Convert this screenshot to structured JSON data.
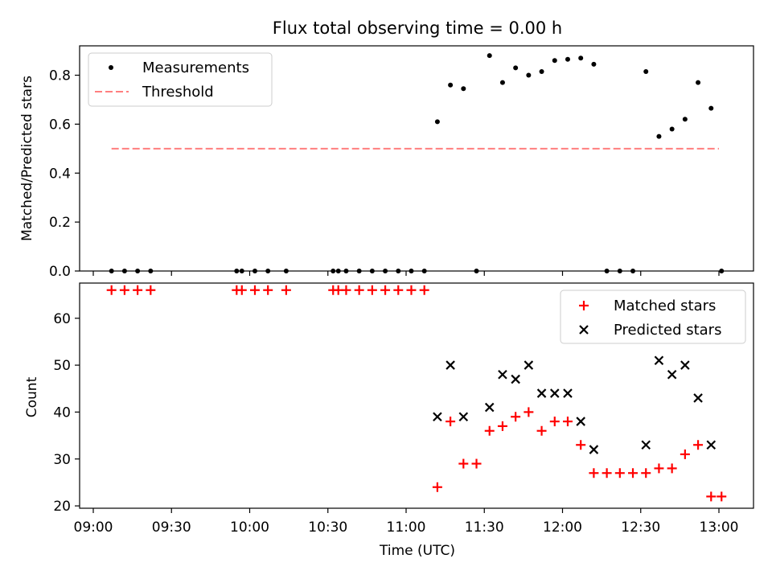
{
  "chart_data": [
    {
      "type": "scatter",
      "title": "Flux total observing time = 0.00 h",
      "xlabel": "",
      "ylabel": "Matched/Predicted stars",
      "ylim": [
        0,
        0.92
      ],
      "yticks": [
        "0.0",
        "0.2",
        "0.4",
        "0.6",
        "0.8"
      ],
      "grid": false,
      "legend_position": "top-left",
      "legend": [
        "Measurements",
        "Threshold"
      ],
      "threshold": {
        "name": "Threshold",
        "value": 0.5,
        "x_start": "09:07",
        "x_end": "13:00",
        "color": "#ff7f7f"
      },
      "series": [
        {
          "name": "Measurements",
          "color": "#000000",
          "x": [
            "09:07",
            "09:12",
            "09:17",
            "09:22",
            "09:55",
            "09:57",
            "10:02",
            "10:07",
            "10:14",
            "10:32",
            "10:34",
            "10:37",
            "10:42",
            "10:47",
            "10:52",
            "10:57",
            "11:02",
            "11:07",
            "11:12",
            "11:17",
            "11:22",
            "11:27",
            "11:32",
            "11:37",
            "11:42",
            "11:47",
            "11:52",
            "11:57",
            "12:02",
            "12:07",
            "12:12",
            "12:17",
            "12:22",
            "12:27",
            "12:32",
            "12:37",
            "12:42",
            "12:47",
            "12:52",
            "12:57",
            "13:01"
          ],
          "y": [
            0,
            0,
            0,
            0,
            0,
            0,
            0,
            0,
            0,
            0,
            0,
            0,
            0,
            0,
            0,
            0,
            0,
            0,
            0.61,
            0.76,
            0.745,
            0,
            0.88,
            0.77,
            0.83,
            0.8,
            0.815,
            0.86,
            0.865,
            0.87,
            0.845,
            0,
            0,
            0,
            0.815,
            0.55,
            0.58,
            0.62,
            0.77,
            0.665,
            0
          ]
        }
      ]
    },
    {
      "type": "scatter",
      "title": "",
      "xlabel": "Time (UTC)",
      "ylabel": "Count",
      "ylim": [
        19.5,
        67.5
      ],
      "yticks": [
        "20",
        "30",
        "40",
        "50",
        "60"
      ],
      "xticks": [
        "09:00",
        "09:30",
        "10:00",
        "10:30",
        "11:00",
        "11:30",
        "12:00",
        "12:30",
        "13:00"
      ],
      "grid": false,
      "legend_position": "top-right",
      "legend": [
        "Matched stars",
        "Predicted stars"
      ],
      "series": [
        {
          "name": "Matched stars",
          "marker": "+",
          "color": "#ff0000",
          "x": [
            "09:07",
            "09:12",
            "09:17",
            "09:22",
            "09:55",
            "09:57",
            "10:02",
            "10:07",
            "10:14",
            "10:32",
            "10:34",
            "10:37",
            "10:42",
            "10:47",
            "10:52",
            "10:57",
            "11:02",
            "11:07",
            "11:12",
            "11:17",
            "11:22",
            "11:27",
            "11:32",
            "11:37",
            "11:42",
            "11:47",
            "11:52",
            "11:57",
            "12:02",
            "12:07",
            "12:12",
            "12:17",
            "12:22",
            "12:27",
            "12:32",
            "12:37",
            "12:42",
            "12:47",
            "12:52",
            "12:57",
            "13:01"
          ],
          "y": [
            66,
            66,
            66,
            66,
            66,
            66,
            66,
            66,
            66,
            66,
            66,
            66,
            66,
            66,
            66,
            66,
            66,
            66,
            24,
            38,
            29,
            29,
            36,
            37,
            39,
            40,
            36,
            38,
            38,
            33,
            27,
            27,
            27,
            27,
            27,
            28,
            28,
            31,
            33,
            22,
            22
          ]
        },
        {
          "name": "Predicted stars",
          "marker": "x",
          "color": "#000000",
          "x": [
            "11:12",
            "11:17",
            "11:22",
            "11:32",
            "11:37",
            "11:42",
            "11:47",
            "11:52",
            "11:57",
            "12:02",
            "12:07",
            "12:12",
            "12:32",
            "12:37",
            "12:42",
            "12:47",
            "12:52",
            "12:57"
          ],
          "y": [
            39,
            50,
            39,
            41,
            48,
            47,
            50,
            44,
            44,
            44,
            38,
            32,
            33,
            51,
            48,
            50,
            43,
            33
          ]
        }
      ]
    }
  ]
}
